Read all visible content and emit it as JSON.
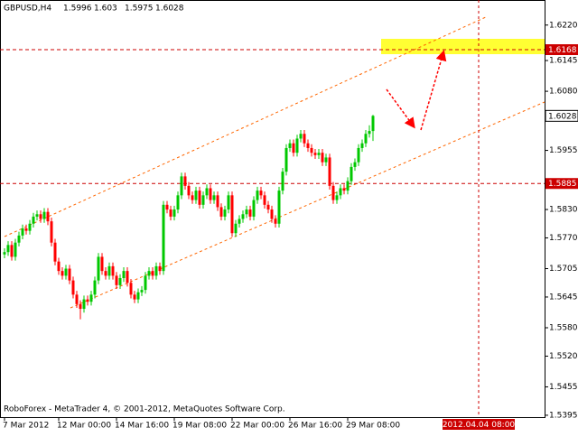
{
  "chart_data": {
    "type": "candlestick",
    "title": "GBPUSD,H4",
    "footer": "RoboForex - MetaTrader 4, © 2001-2012, MetaQuotes Software Corp.",
    "up_color": "#00c800",
    "down_color": "#ff0000",
    "ylim": [
      1.5391,
      1.6273
    ],
    "yticks": [
      {
        "value": 1.622,
        "label": "1.6220"
      },
      1.6145,
      {
        "value": 1.608,
        "label": "1.6080"
      },
      1.5955,
      1.5885,
      {
        "value": 1.583,
        "label": "1.5830"
      },
      {
        "value": 1.577,
        "label": "1.5770"
      },
      1.5705,
      1.5645,
      {
        "value": 1.558,
        "label": "1.5580"
      },
      {
        "value": 1.552,
        "label": "1.5520"
      },
      1.5455,
      1.5395
    ],
    "hlines": [
      1.6168,
      1.5885
    ],
    "vline_label": "2012.04.04 08:00",
    "categories": [
      "7 Mar 2012",
      null,
      null,
      null,
      null,
      null,
      null,
      null,
      null,
      null,
      null,
      null,
      null,
      null,
      null,
      "12 Mar 00:00",
      null,
      null,
      null,
      null,
      null,
      null,
      null,
      null,
      null,
      null,
      null,
      null,
      null,
      null,
      null,
      "14 Mar 16:00",
      null,
      null,
      null,
      null,
      null,
      null,
      null,
      null,
      null,
      null,
      null,
      null,
      null,
      null,
      null,
      "19 Mar 08:00",
      null,
      null,
      null,
      null,
      null,
      null,
      null,
      null,
      null,
      null,
      null,
      null,
      null,
      null,
      null,
      "22 Mar 00:00",
      null,
      null,
      null,
      null,
      null,
      null,
      null,
      null,
      null,
      null,
      null,
      null,
      null,
      null,
      null,
      "26 Mar 16:00",
      null,
      null,
      null,
      null,
      null,
      null,
      null,
      null,
      null,
      null,
      null,
      null,
      null,
      null,
      null,
      "29 Mar 08:00",
      null,
      null,
      null,
      null,
      null,
      null,
      null
    ],
    "ohlc": [
      [
        1.5735,
        1.5748,
        1.5727,
        1.574
      ],
      [
        1.574,
        1.5763,
        1.5732,
        1.5755
      ],
      [
        1.5755,
        1.5763,
        1.5722,
        1.573
      ],
      [
        1.573,
        1.5768,
        1.5722,
        1.576
      ],
      [
        1.576,
        1.5783,
        1.5752,
        1.5775
      ],
      [
        1.5775,
        1.5798,
        1.5767,
        1.579
      ],
      [
        1.579,
        1.5798,
        1.5777,
        1.5785
      ],
      [
        1.5785,
        1.5808,
        1.5777,
        1.58
      ],
      [
        1.58,
        1.5823,
        1.5792,
        1.5815
      ],
      [
        1.5815,
        1.5828,
        1.5807,
        1.582
      ],
      [
        1.582,
        1.5828,
        1.5802,
        1.581
      ],
      [
        1.581,
        1.5833,
        1.5802,
        1.5825
      ],
      [
        1.5825,
        1.5833,
        1.5797,
        1.5805
      ],
      [
        1.5805,
        1.5813,
        1.5752,
        1.576
      ],
      [
        1.576,
        1.5768,
        1.5712,
        1.572
      ],
      [
        1.572,
        1.5728,
        1.5692,
        1.57
      ],
      [
        1.57,
        1.5708,
        1.5682,
        1.569
      ],
      [
        1.569,
        1.5713,
        1.5682,
        1.5705
      ],
      [
        1.5705,
        1.5713,
        1.5672,
        1.568
      ],
      [
        1.568,
        1.5688,
        1.5642,
        1.565
      ],
      [
        1.565,
        1.5658,
        1.5622,
        1.563
      ],
      [
        1.563,
        1.5638,
        1.5598,
        1.562
      ],
      [
        1.562,
        1.5648,
        1.5612,
        1.564
      ],
      [
        1.564,
        1.5648,
        1.5627,
        1.5635
      ],
      [
        1.5635,
        1.5658,
        1.5627,
        1.565
      ],
      [
        1.565,
        1.5688,
        1.5642,
        1.568
      ],
      [
        1.568,
        1.5738,
        1.5672,
        1.573
      ],
      [
        1.573,
        1.5738,
        1.5692,
        1.57
      ],
      [
        1.57,
        1.5708,
        1.5682,
        1.569
      ],
      [
        1.569,
        1.5718,
        1.5682,
        1.571
      ],
      [
        1.571,
        1.5718,
        1.5682,
        1.569
      ],
      [
        1.569,
        1.5698,
        1.5662,
        1.567
      ],
      [
        1.567,
        1.5693,
        1.5662,
        1.5685
      ],
      [
        1.5685,
        1.5708,
        1.5677,
        1.57
      ],
      [
        1.57,
        1.5708,
        1.5667,
        1.5675
      ],
      [
        1.5675,
        1.5683,
        1.5642,
        1.565
      ],
      [
        1.565,
        1.5658,
        1.5632,
        1.564
      ],
      [
        1.564,
        1.5663,
        1.5632,
        1.5655
      ],
      [
        1.5655,
        1.5668,
        1.5647,
        1.566
      ],
      [
        1.566,
        1.5698,
        1.5652,
        1.569
      ],
      [
        1.569,
        1.5708,
        1.5682,
        1.57
      ],
      [
        1.57,
        1.5708,
        1.5682,
        1.569
      ],
      [
        1.569,
        1.5718,
        1.5682,
        1.571
      ],
      [
        1.571,
        1.5718,
        1.5692,
        1.57
      ],
      [
        1.57,
        1.5848,
        1.5692,
        1.584
      ],
      [
        1.584,
        1.5848,
        1.5822,
        1.583
      ],
      [
        1.583,
        1.5838,
        1.5807,
        1.5815
      ],
      [
        1.5815,
        1.5838,
        1.5807,
        1.583
      ],
      [
        1.583,
        1.5868,
        1.5822,
        1.586
      ],
      [
        1.586,
        1.5908,
        1.5852,
        1.59
      ],
      [
        1.59,
        1.5908,
        1.5872,
        1.588
      ],
      [
        1.588,
        1.5888,
        1.5852,
        1.586
      ],
      [
        1.586,
        1.5868,
        1.5842,
        1.585
      ],
      [
        1.585,
        1.5878,
        1.5842,
        1.587
      ],
      [
        1.587,
        1.5878,
        1.5832,
        1.584
      ],
      [
        1.584,
        1.5868,
        1.5832,
        1.586
      ],
      [
        1.586,
        1.5883,
        1.5852,
        1.5875
      ],
      [
        1.5875,
        1.5883,
        1.5842,
        1.585
      ],
      [
        1.585,
        1.5868,
        1.5842,
        1.586
      ],
      [
        1.586,
        1.5868,
        1.5827,
        1.5835
      ],
      [
        1.5835,
        1.5843,
        1.5807,
        1.5815
      ],
      [
        1.5815,
        1.5838,
        1.5807,
        1.583
      ],
      [
        1.583,
        1.5868,
        1.5822,
        1.586
      ],
      [
        1.586,
        1.5868,
        1.5772,
        1.578
      ],
      [
        1.578,
        1.5808,
        1.5772,
        1.58
      ],
      [
        1.58,
        1.5818,
        1.5792,
        1.581
      ],
      [
        1.581,
        1.5828,
        1.5802,
        1.582
      ],
      [
        1.582,
        1.5838,
        1.5812,
        1.583
      ],
      [
        1.583,
        1.5838,
        1.5807,
        1.5815
      ],
      [
        1.5815,
        1.5858,
        1.5807,
        1.585
      ],
      [
        1.585,
        1.5878,
        1.5842,
        1.587
      ],
      [
        1.587,
        1.5878,
        1.5852,
        1.586
      ],
      [
        1.586,
        1.5868,
        1.5832,
        1.584
      ],
      [
        1.584,
        1.5848,
        1.5822,
        1.583
      ],
      [
        1.583,
        1.5838,
        1.5802,
        1.581
      ],
      [
        1.581,
        1.5818,
        1.5792,
        1.58
      ],
      [
        1.58,
        1.5878,
        1.5792,
        1.587
      ],
      [
        1.587,
        1.5918,
        1.5862,
        1.591
      ],
      [
        1.591,
        1.5968,
        1.5902,
        1.596
      ],
      [
        1.596,
        1.5978,
        1.5952,
        1.597
      ],
      [
        1.597,
        1.5978,
        1.5942,
        1.595
      ],
      [
        1.595,
        1.5988,
        1.5942,
        1.598
      ],
      [
        1.598,
        1.5998,
        1.5972,
        1.599
      ],
      [
        1.599,
        1.5998,
        1.5962,
        1.597
      ],
      [
        1.597,
        1.5978,
        1.5952,
        1.596
      ],
      [
        1.596,
        1.5968,
        1.5942,
        1.595
      ],
      [
        1.595,
        1.5958,
        1.5937,
        1.5945
      ],
      [
        1.5945,
        1.5958,
        1.5937,
        1.595
      ],
      [
        1.595,
        1.5958,
        1.5922,
        1.593
      ],
      [
        1.593,
        1.5948,
        1.5922,
        1.594
      ],
      [
        1.594,
        1.5948,
        1.5872,
        1.588
      ],
      [
        1.588,
        1.5888,
        1.5842,
        1.585
      ],
      [
        1.585,
        1.5868,
        1.5842,
        1.586
      ],
      [
        1.586,
        1.5883,
        1.5852,
        1.5875
      ],
      [
        1.5875,
        1.5883,
        1.5862,
        1.587
      ],
      [
        1.587,
        1.5898,
        1.5862,
        1.589
      ],
      [
        1.589,
        1.5928,
        1.5882,
        1.592
      ],
      [
        1.592,
        1.5938,
        1.5912,
        1.593
      ],
      [
        1.593,
        1.5968,
        1.5922,
        1.596
      ],
      [
        1.596,
        1.5978,
        1.5952,
        1.597
      ],
      [
        1.597,
        1.5998,
        1.5962,
        1.599
      ],
      [
        1.599,
        1.6008,
        1.5982,
        1.5996
      ],
      [
        1.5996,
        1.603,
        1.5975,
        1.6028
      ]
    ]
  }
}
